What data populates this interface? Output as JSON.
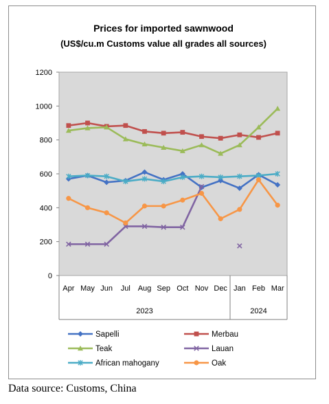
{
  "source_note": "Data source: Customs, China",
  "chart_data": {
    "type": "line",
    "title": "Prices for imported sawnwood",
    "subtitle": "(US$/cu.m Customs value all grades all sources)",
    "categories": [
      "Apr",
      "May",
      "Jun",
      "Jul",
      "Aug",
      "Sep",
      "Oct",
      "Nov",
      "Dec",
      "Jan",
      "Feb",
      "Mar"
    ],
    "year_groups": [
      {
        "label": "2023",
        "count": 9
      },
      {
        "label": "2024",
        "count": 3
      }
    ],
    "ylim": [
      0,
      1200
    ],
    "yticks": [
      0,
      200,
      400,
      600,
      800,
      1000,
      1200
    ],
    "grid": false,
    "legend_position": "bottom",
    "series": [
      {
        "name": "Sapelli",
        "color": "#4472c4",
        "marker": "diamond",
        "values": [
          570,
          590,
          550,
          560,
          610,
          565,
          600,
          520,
          560,
          515,
          595,
          535
        ]
      },
      {
        "name": "Merbau",
        "color": "#c0504d",
        "marker": "square",
        "values": [
          885,
          900,
          880,
          885,
          850,
          840,
          845,
          820,
          810,
          830,
          815,
          840
        ]
      },
      {
        "name": "Teak",
        "color": "#9bbb59",
        "marker": "triangle",
        "values": [
          855,
          870,
          875,
          805,
          775,
          755,
          735,
          770,
          720,
          770,
          875,
          985
        ]
      },
      {
        "name": "Lauan",
        "color": "#8064a2",
        "marker": "x",
        "values": [
          185,
          185,
          185,
          290,
          290,
          285,
          285,
          525,
          null,
          175,
          null,
          null
        ]
      },
      {
        "name": "African mahogany",
        "color": "#4bacc6",
        "marker": "star",
        "values": [
          585,
          590,
          585,
          555,
          570,
          555,
          580,
          585,
          580,
          585,
          590,
          600
        ]
      },
      {
        "name": "Oak",
        "color": "#f79646",
        "marker": "circle",
        "values": [
          455,
          400,
          370,
          310,
          410,
          410,
          445,
          485,
          335,
          390,
          565,
          415
        ]
      }
    ]
  }
}
